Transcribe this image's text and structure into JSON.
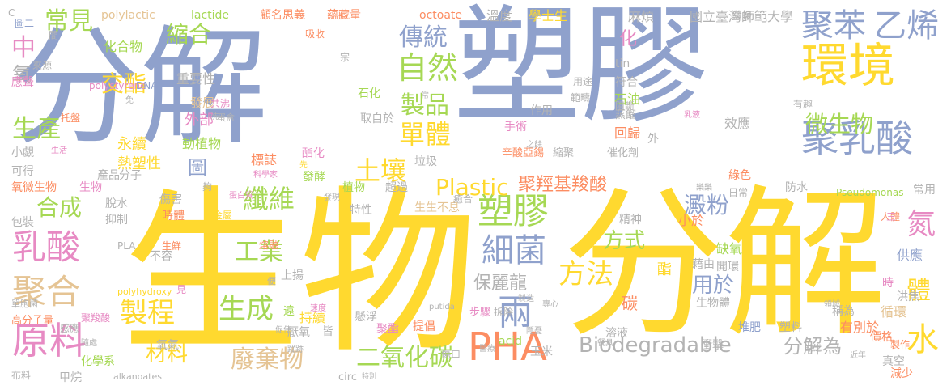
{
  "words": [
    {
      "text": "分解",
      "color": "#8fa1cc"
    },
    {
      "text": "塑膠",
      "color": "#8fa1cc"
    },
    {
      "text": "生物",
      "color": "#ffd92f"
    },
    {
      "text": "分解",
      "color": "#ffd92f"
    },
    {
      "text": "環境",
      "color": "#ffd92f"
    },
    {
      "text": "聚苯",
      "color": "#8fa1cc"
    },
    {
      "text": "乙烯",
      "color": "#8fa1cc"
    },
    {
      "text": "聚乳酸",
      "color": "#8fa1cc"
    },
    {
      "text": "微生物",
      "color": "#a6d854"
    },
    {
      "text": "自然",
      "color": "#a6d854"
    },
    {
      "text": "傳統",
      "color": "#8fa1cc"
    },
    {
      "text": "製品",
      "color": "#a6d854"
    },
    {
      "text": "單體",
      "color": "#ffd92f"
    },
    {
      "text": "縮合",
      "color": "#a6d854"
    },
    {
      "text": "交酯",
      "color": "#ffd92f"
    },
    {
      "text": "常見",
      "color": "#a6d854"
    },
    {
      "text": "中",
      "color": "#e78ac3"
    },
    {
      "text": "氧",
      "color": "#b3b3b3"
    },
    {
      "text": "生產",
      "color": "#a6d854"
    },
    {
      "text": "合成",
      "color": "#a6d854"
    },
    {
      "text": "乳酸",
      "color": "#e78ac3"
    },
    {
      "text": "聚合",
      "color": "#e5c494"
    },
    {
      "text": "原料",
      "color": "#e78ac3"
    },
    {
      "text": "製程",
      "color": "#ffd92f"
    },
    {
      "text": "材料",
      "color": "#ffd92f"
    },
    {
      "text": "纖維",
      "color": "#a6d854"
    },
    {
      "text": "土壤",
      "color": "#ffd92f"
    },
    {
      "text": "塑膠",
      "color": "#a6d854"
    },
    {
      "text": "細菌",
      "color": "#8fa1cc"
    },
    {
      "text": "工業",
      "color": "#a6d854"
    },
    {
      "text": "生成",
      "color": "#a6d854"
    },
    {
      "text": "方法",
      "color": "#ffd92f"
    },
    {
      "text": "兩",
      "color": "#8fa1cc"
    },
    {
      "text": "廢棄物",
      "color": "#e5c494"
    },
    {
      "text": "二氧化碳",
      "color": "#a6d854"
    },
    {
      "text": "PHA",
      "color": "#fc8d62"
    },
    {
      "text": "Biodegradable",
      "color": "#b3b3b3"
    },
    {
      "text": "Plastic",
      "color": "#ffd92f"
    },
    {
      "text": "聚羥基羧酸",
      "color": "#fc8d62"
    },
    {
      "text": "澱粉",
      "color": "#8fa1cc"
    },
    {
      "text": "用於",
      "color": "#8fa1cc"
    },
    {
      "text": "方式",
      "color": "#a6d854"
    },
    {
      "text": "分解為",
      "color": "#b3b3b3"
    },
    {
      "text": "水",
      "color": "#ffd92f"
    },
    {
      "text": "氮",
      "color": "#e78ac3"
    },
    {
      "text": "體",
      "color": "#ffd92f"
    },
    {
      "text": "化",
      "color": "#e78ac3"
    },
    {
      "text": "圖",
      "color": "#8fa1cc"
    },
    {
      "text": "保麗龍",
      "color": "#b3b3b3"
    },
    {
      "text": "碳",
      "color": "#fc8d62"
    },
    {
      "text": "國立臺灣師範大學",
      "color": "#b3b3b3"
    },
    {
      "text": "麻煩",
      "color": "#b3b3b3"
    },
    {
      "text": "學士生",
      "color": "#ffd92f"
    },
    {
      "text": "溫度",
      "color": "#b3b3b3"
    },
    {
      "text": "顧名思義",
      "color": "#fc8d62"
    },
    {
      "text": "蘊藏量",
      "color": "#fc8d62"
    },
    {
      "text": "lactide",
      "color": "#a6d854"
    },
    {
      "text": "polylactic",
      "color": "#e5c494"
    },
    {
      "text": "octoate",
      "color": "#fc8d62"
    },
    {
      "text": "化合物",
      "color": "#a6d854"
    },
    {
      "text": "重要性",
      "color": "#b3b3b3"
    },
    {
      "text": "發展",
      "color": "#e5c494"
    },
    {
      "text": "polystyrene",
      "color": "#e78ac3"
    },
    {
      "text": "DNA",
      "color": "#8fa1cc"
    },
    {
      "text": "吸收",
      "color": "#fc8d62"
    },
    {
      "text": "永續",
      "color": "#ffd92f"
    },
    {
      "text": "熱塑性",
      "color": "#ffd92f"
    },
    {
      "text": "外部",
      "color": "#e78ac3"
    },
    {
      "text": "動植物",
      "color": "#a6d854"
    },
    {
      "text": "標誌",
      "color": "#fc8d62"
    },
    {
      "text": "酯化",
      "color": "#e78ac3"
    },
    {
      "text": "取自於",
      "color": "#b3b3b3"
    },
    {
      "text": "石化",
      "color": "#a6d854"
    },
    {
      "text": "作用",
      "color": "#b3b3b3"
    },
    {
      "text": "符合",
      "color": "#b3b3b3"
    },
    {
      "text": "範疇",
      "color": "#b3b3b3"
    },
    {
      "text": "石油",
      "color": "#a6d854"
    },
    {
      "text": "手術",
      "color": "#e78ac3"
    },
    {
      "text": "回歸",
      "color": "#fc8d62"
    },
    {
      "text": "辛酸亞錫",
      "color": "#fc8d62"
    },
    {
      "text": "縮聚",
      "color": "#b3b3b3"
    },
    {
      "text": "催化劑",
      "color": "#b3b3b3"
    },
    {
      "text": "效應",
      "color": "#b3b3b3"
    },
    {
      "text": "綠色",
      "color": "#fc8d62"
    },
    {
      "text": "防水",
      "color": "#b3b3b3"
    },
    {
      "text": "Pseudomonas",
      "color": "#a6d854"
    },
    {
      "text": "常用",
      "color": "#b3b3b3"
    },
    {
      "text": "垃圾",
      "color": "#b3b3b3"
    },
    {
      "text": "發酵",
      "color": "#a6d854"
    },
    {
      "text": "超過",
      "color": "#b3b3b3"
    },
    {
      "text": "植物",
      "color": "#a6d854"
    },
    {
      "text": "特性",
      "color": "#b3b3b3"
    },
    {
      "text": "生生不息",
      "color": "#e5c494"
    },
    {
      "text": "精神",
      "color": "#b3b3b3"
    },
    {
      "text": "小於",
      "color": "#fc8d62"
    },
    {
      "text": "缺氧",
      "color": "#a6d854"
    },
    {
      "text": "開環",
      "color": "#b3b3b3"
    },
    {
      "text": "供應",
      "color": "#8fa1cc"
    },
    {
      "text": "洪焦",
      "color": "#b3b3b3"
    },
    {
      "text": "循環",
      "color": "#e5c494"
    },
    {
      "text": "價格",
      "color": "#fc8d62"
    },
    {
      "text": "稱為",
      "color": "#b3b3b3"
    },
    {
      "text": "有別於",
      "color": "#fc8d62"
    },
    {
      "text": "塑料",
      "color": "#b3b3b3"
    },
    {
      "text": "堆肥",
      "color": "#8fa1cc"
    },
    {
      "text": "衝擊",
      "color": "#b3b3b3"
    },
    {
      "text": "溶液",
      "color": "#b3b3b3"
    },
    {
      "text": "減少",
      "color": "#fc8d62"
    },
    {
      "text": "持續",
      "color": "#ffd92f"
    },
    {
      "text": "懸浮",
      "color": "#b3b3b3"
    },
    {
      "text": "提倡",
      "color": "#fc8d62"
    },
    {
      "text": "聚酯",
      "color": "#e78ac3"
    },
    {
      "text": "玉米",
      "color": "#b3b3b3"
    },
    {
      "text": "acid",
      "color": "#a6d854"
    },
    {
      "text": "circ",
      "color": "#b3b3b3"
    },
    {
      "text": "特別",
      "color": "#b3b3b3"
    },
    {
      "text": "厭氧",
      "color": "#b3b3b3"
    },
    {
      "text": "皆",
      "color": "#b3b3b3"
    },
    {
      "text": "遠",
      "color": "#a6d854"
    },
    {
      "text": "上揚",
      "color": "#b3b3b3"
    },
    {
      "text": "分子",
      "color": "#b3b3b3"
    },
    {
      "text": "生物",
      "color": "#e78ac3"
    },
    {
      "text": "脫水",
      "color": "#b3b3b3"
    },
    {
      "text": "抑制",
      "color": "#b3b3b3"
    },
    {
      "text": "傷害",
      "color": "#b3b3b3"
    },
    {
      "text": "時體",
      "color": "#fc8d62"
    },
    {
      "text": "金屬",
      "color": "#ffd92f"
    },
    {
      "text": "夠",
      "color": "#b3b3b3"
    },
    {
      "text": "不容",
      "color": "#b3b3b3"
    },
    {
      "text": "生鮮",
      "color": "#fc8d62"
    },
    {
      "text": "化學系",
      "color": "#a6d854"
    },
    {
      "text": "甲烷",
      "color": "#b3b3b3"
    },
    {
      "text": "氧氣",
      "color": "#b3b3b3"
    },
    {
      "text": "polyhydroxy",
      "color": "#ffd92f"
    },
    {
      "text": "alkanoates",
      "color": "#b3b3b3"
    },
    {
      "text": "高分子量",
      "color": "#fc8d62"
    },
    {
      "text": "布料",
      "color": "#b3b3b3"
    },
    {
      "text": "應聲",
      "color": "#e78ac3"
    },
    {
      "text": "托盤",
      "color": "#fc8d62"
    },
    {
      "text": "小覷",
      "color": "#b3b3b3"
    },
    {
      "text": "可得",
      "color": "#b3b3b3"
    },
    {
      "text": "氧微生物",
      "color": "#fc8d62"
    },
    {
      "text": "包裝",
      "color": "#b3b3b3"
    },
    {
      "text": "共沸",
      "color": "#e78ac3"
    },
    {
      "text": "產品",
      "color": "#b3b3b3"
    },
    {
      "text": "PLA",
      "color": "#b3b3b3"
    },
    {
      "text": "圖二",
      "color": "#8fa1cc"
    },
    {
      "text": "來源",
      "color": "#b3b3b3"
    },
    {
      "text": "宗",
      "color": "#b3b3b3"
    },
    {
      "text": "tin",
      "color": "#b3b3b3"
    },
    {
      "text": "用途",
      "color": "#b3b3b3"
    },
    {
      "text": "緩慢",
      "color": "#b3b3b3"
    },
    {
      "text": "有趣",
      "color": "#b3b3b3"
    },
    {
      "text": "蒸餾",
      "color": "#b3b3b3"
    },
    {
      "text": "藉由",
      "color": "#b3b3b3"
    },
    {
      "text": "酯",
      "color": "#ffd92f"
    },
    {
      "text": "生物體",
      "color": "#b3b3b3"
    },
    {
      "text": "製作",
      "color": "#fc8d62"
    },
    {
      "text": "真空",
      "color": "#b3b3b3"
    },
    {
      "text": "人體",
      "color": "#fc8d62"
    },
    {
      "text": "時",
      "color": "#e78ac3"
    },
    {
      "text": "間",
      "color": "#b3b3b3"
    },
    {
      "text": "便",
      "color": "#b3b3b3"
    },
    {
      "text": "見",
      "color": "#e78ac3"
    },
    {
      "text": "蛋盒",
      "color": "#b3b3b3"
    },
    {
      "text": "熔融",
      "color": "#fc8d62"
    },
    {
      "text": "步驟",
      "color": "#e78ac3"
    },
    {
      "text": "拆除",
      "color": "#b3b3b3"
    },
    {
      "text": "傷口",
      "color": "#b3b3b3"
    },
    {
      "text": "癒合",
      "color": "#b3b3b3"
    },
    {
      "text": "外",
      "color": "#b3b3b3"
    },
    {
      "text": "三",
      "color": "#e78ac3"
    },
    {
      "text": "日常",
      "color": "#b3b3b3"
    },
    {
      "text": "樂樂",
      "color": "#b3b3b3"
    },
    {
      "text": "領域",
      "color": "#b3b3b3"
    },
    {
      "text": "缺乏",
      "color": "#b3b3b3"
    },
    {
      "text": "近年",
      "color": "#b3b3b3"
    },
    {
      "text": "感應",
      "color": "#b3b3b3"
    },
    {
      "text": "聚羧酸",
      "color": "#e78ac3"
    },
    {
      "text": "乳液",
      "color": "#e78ac3"
    },
    {
      "text": "之餘",
      "color": "#b3b3b3"
    },
    {
      "text": "洗",
      "color": "#b3b3b3"
    },
    {
      "text": "免",
      "color": "#b3b3b3"
    },
    {
      "text": "常",
      "color": "#b3b3b3"
    },
    {
      "text": "生活",
      "color": "#e78ac3"
    },
    {
      "text": "科學家",
      "color": "#e78ac3"
    },
    {
      "text": "發現",
      "color": "#b3b3b3"
    },
    {
      "text": "速度",
      "color": "#e78ac3"
    },
    {
      "text": "促使",
      "color": "#b3b3b3"
    },
    {
      "text": "隨處",
      "color": "#b3b3b3"
    },
    {
      "text": "蹤跡",
      "color": "#b3b3b3"
    },
    {
      "text": "putida",
      "color": "#b3b3b3"
    },
    {
      "text": "製造",
      "color": "#b3b3b3"
    },
    {
      "text": "專心",
      "color": "#b3b3b3"
    },
    {
      "text": "隱憂",
      "color": "#b3b3b3"
    },
    {
      "text": "餐具",
      "color": "#b3b3b3"
    },
    {
      "text": "醫療",
      "color": "#b3b3b3"
    },
    {
      "text": "單胞菌",
      "color": "#b3b3b3"
    },
    {
      "text": "先",
      "color": "#ffd92f"
    },
    {
      "text": "蛋白質",
      "color": "#e78ac3"
    },
    {
      "text": "阻斷",
      "color": "#b3b3b3"
    },
    {
      "text": "C",
      "color": "#b3b3b3"
    }
  ]
}
